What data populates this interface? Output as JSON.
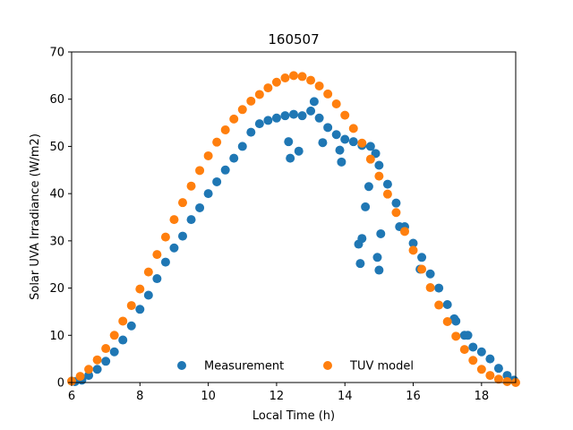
{
  "chart_data": {
    "type": "scatter",
    "title": "160507",
    "xlabel": "Local Time (h)",
    "ylabel": "Solar UVA Irradiance (W/m2)",
    "xlim": [
      6,
      19
    ],
    "ylim": [
      0,
      70
    ],
    "xticks": [
      6,
      8,
      10,
      12,
      14,
      16,
      18
    ],
    "yticks": [
      0,
      10,
      20,
      30,
      40,
      50,
      60,
      70
    ],
    "grid": false,
    "legend_position": "lower-center",
    "series": [
      {
        "name": "Measurement",
        "color": "#1f77b4",
        "x": [
          6.1,
          6.3,
          6.5,
          6.75,
          7.0,
          7.25,
          7.5,
          7.75,
          8.0,
          8.25,
          8.5,
          8.75,
          9.0,
          9.25,
          9.5,
          9.75,
          10.0,
          10.25,
          10.5,
          10.75,
          11.0,
          11.25,
          11.5,
          11.75,
          12.0,
          12.25,
          12.5,
          12.75,
          13.0,
          13.1,
          13.25,
          13.5,
          13.75,
          14.0,
          14.25,
          14.5,
          14.75,
          14.9,
          15.0,
          15.25,
          15.5,
          15.75,
          16.0,
          16.25,
          16.5,
          16.75,
          17.0,
          17.25,
          17.5,
          17.75,
          18.0,
          18.25,
          18.5,
          18.75,
          18.95,
          12.35,
          12.4,
          12.65,
          13.35,
          13.85,
          13.9,
          14.4,
          14.45,
          14.5,
          14.6,
          14.7,
          14.95,
          15.0,
          15.05,
          15.6,
          16.2,
          17.2,
          17.6
        ],
        "y": [
          0.2,
          0.5,
          1.5,
          2.8,
          4.5,
          6.5,
          9.0,
          12.0,
          15.5,
          18.5,
          22.0,
          25.5,
          28.5,
          31.0,
          34.5,
          37.0,
          40.0,
          42.5,
          45.0,
          47.5,
          50.0,
          53.0,
          54.8,
          55.5,
          56.0,
          56.5,
          56.8,
          56.5,
          57.5,
          59.5,
          56.0,
          54.0,
          52.5,
          51.5,
          51.0,
          50.2,
          50.0,
          48.5,
          46.0,
          42.0,
          38.0,
          33.0,
          29.5,
          26.5,
          23.0,
          20.0,
          16.5,
          13.0,
          10.0,
          7.5,
          6.5,
          5.0,
          3.0,
          1.5,
          0.5,
          51.0,
          47.5,
          49.0,
          50.8,
          49.2,
          46.7,
          29.3,
          25.2,
          30.5,
          37.2,
          41.5,
          26.5,
          23.8,
          31.5,
          33.0,
          24.0,
          13.5,
          10.0
        ]
      },
      {
        "name": "TUV model",
        "color": "#ff7f0e",
        "x": [
          6.0,
          6.25,
          6.5,
          6.75,
          7.0,
          7.25,
          7.5,
          7.75,
          8.0,
          8.25,
          8.5,
          8.75,
          9.0,
          9.25,
          9.5,
          9.75,
          10.0,
          10.25,
          10.5,
          10.75,
          11.0,
          11.25,
          11.5,
          11.75,
          12.0,
          12.25,
          12.5,
          12.75,
          13.0,
          13.25,
          13.5,
          13.75,
          14.0,
          14.25,
          14.5,
          14.75,
          15.0,
          15.25,
          15.5,
          15.75,
          16.0,
          16.25,
          16.5,
          16.75,
          17.0,
          17.25,
          17.5,
          17.75,
          18.0,
          18.25,
          18.5,
          18.75,
          19.0
        ],
        "y": [
          0.3,
          1.3,
          2.8,
          4.8,
          7.2,
          10.0,
          13.0,
          16.3,
          19.8,
          23.4,
          27.1,
          30.8,
          34.5,
          38.1,
          41.6,
          44.9,
          48.0,
          50.9,
          53.5,
          55.8,
          57.8,
          59.6,
          61.0,
          62.4,
          63.6,
          64.5,
          65.0,
          64.8,
          64.0,
          62.8,
          61.1,
          59.0,
          56.6,
          53.8,
          50.7,
          47.3,
          43.7,
          39.9,
          36.0,
          32.0,
          28.0,
          24.0,
          20.1,
          16.4,
          12.9,
          9.8,
          7.0,
          4.7,
          2.8,
          1.5,
          0.7,
          0.2,
          0.0
        ]
      }
    ]
  }
}
